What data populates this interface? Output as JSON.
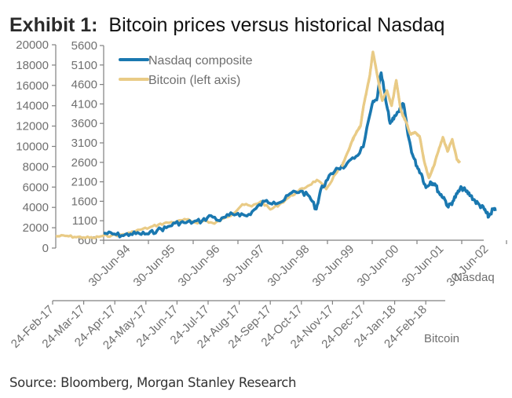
{
  "title": {
    "prefix": "Exhibit 1:",
    "text": "Bitcoin prices versus historical Nasdaq"
  },
  "source": "Source: Bloomberg, Morgan Stanley Research",
  "chart_data": {
    "type": "line",
    "title": "Exhibit 1: Bitcoin prices versus historical Nasdaq",
    "colors": {
      "nasdaq": "#1a78b0",
      "bitcoin": "#e9cb86",
      "axis": "#808080",
      "text": "#6f6f6f"
    },
    "legend": {
      "placement": "top-left",
      "entries": [
        {
          "name": "Nasdaq composite",
          "color": "#1a78b0"
        },
        {
          "name": "Bitcoin (left axis)",
          "color": "#e9cb86"
        }
      ]
    },
    "y_left": {
      "label": "Bitcoin",
      "range": [
        0,
        20000
      ],
      "ticks": [
        "0",
        "2000",
        "4000",
        "6000",
        "8000",
        "10000",
        "12000",
        "14000",
        "16000",
        "18000",
        "20000"
      ]
    },
    "y_inner": {
      "label": "Nasdaq",
      "range": [
        600,
        5600
      ],
      "ticks": [
        "600",
        "1100",
        "1600",
        "2100",
        "2600",
        "3100",
        "3600",
        "4100",
        "4600",
        "5100",
        "5600"
      ]
    },
    "x_nasdaq": {
      "label": "Nasdaq",
      "range_years": [
        1994.0,
        2002.5
      ],
      "tick_labels": [
        "30-Jun-94",
        "30-Jun-95",
        "30-Jun-96",
        "30-Jun-97",
        "30-Jun-98",
        "30-Jun-99",
        "30-Jun-00",
        "30-Jun-01",
        "30-Jun-02"
      ]
    },
    "x_bitcoin": {
      "label": "Bitcoin",
      "range_months_from_24_Feb_17": [
        0,
        13.2
      ],
      "tick_labels": [
        "24-Feb-17",
        "24-Mar-17",
        "24-Apr-17",
        "24-May-17",
        "24-Jun-17",
        "24-Jul-17",
        "24-Aug-17",
        "24-Sep-17",
        "24-Oct-17",
        "24-Nov-17",
        "24-Dec-17",
        "24-Jan-18",
        "24-Feb-18"
      ]
    },
    "series": [
      {
        "name": "Nasdaq composite",
        "axis": "y_inner / x_nasdaq",
        "x_years": [
          1994.0,
          1994.2,
          1994.4,
          1994.6,
          1994.8,
          1995.0,
          1995.2,
          1995.4,
          1995.6,
          1995.8,
          1996.0,
          1996.2,
          1996.4,
          1996.6,
          1996.8,
          1997.0,
          1997.2,
          1997.4,
          1997.6,
          1997.8,
          1998.0,
          1998.2,
          1998.4,
          1998.6,
          1998.75,
          1998.85,
          1999.0,
          1999.2,
          1999.4,
          1999.6,
          1999.8,
          2000.0,
          2000.1,
          2000.2,
          2000.3,
          2000.4,
          2000.5,
          2000.6,
          2000.7,
          2000.8,
          2000.9,
          2001.0,
          2001.1,
          2001.2,
          2001.3,
          2001.4,
          2001.5,
          2001.6,
          2001.7,
          2001.8,
          2001.9,
          2002.0,
          2002.1,
          2002.2,
          2002.3,
          2002.4,
          2002.5,
          2002.55,
          2002.6,
          2002.7,
          2002.75
        ],
        "values": [
          780,
          760,
          720,
          760,
          770,
          760,
          860,
          920,
          1040,
          1050,
          1070,
          1100,
          1230,
          1100,
          1240,
          1290,
          1220,
          1410,
          1600,
          1580,
          1600,
          1820,
          1860,
          1720,
          1400,
          1900,
          2150,
          2450,
          2500,
          2700,
          3000,
          4100,
          4200,
          4900,
          4200,
          3600,
          3800,
          3900,
          4100,
          3300,
          2800,
          2500,
          2300,
          1950,
          2100,
          2050,
          1800,
          1700,
          1450,
          1600,
          1800,
          1950,
          1850,
          1750,
          1600,
          1500,
          1400,
          1300,
          1200,
          1400,
          1350
        ]
      },
      {
        "name": "Bitcoin (left axis)",
        "axis": "y_left / x_bitcoin",
        "x_months": [
          0,
          0.3,
          0.6,
          0.9,
          1.2,
          1.5,
          1.8,
          2.1,
          2.4,
          2.7,
          3.0,
          3.3,
          3.6,
          3.9,
          4.2,
          4.5,
          4.8,
          5.1,
          5.4,
          5.7,
          6.0,
          6.3,
          6.6,
          6.9,
          7.2,
          7.5,
          7.8,
          8.1,
          8.4,
          8.7,
          9.0,
          9.2,
          9.4,
          9.6,
          9.8,
          9.9,
          10.0,
          10.1,
          10.2,
          10.35,
          10.5,
          10.65,
          10.8,
          10.95,
          11.1,
          11.25,
          11.4,
          11.55,
          11.7,
          11.85,
          12.0,
          12.15,
          12.3,
          12.45,
          12.6,
          12.75,
          12.9,
          13.0
        ],
        "values": [
          1150,
          1200,
          1100,
          1050,
          1000,
          1180,
          1250,
          1300,
          1500,
          1800,
          2000,
          2300,
          2500,
          2600,
          2800,
          2500,
          2700,
          2400,
          2900,
          3400,
          4300,
          4100,
          4600,
          3800,
          4300,
          5000,
          5600,
          6100,
          6700,
          5800,
          7300,
          8000,
          9500,
          11000,
          12000,
          14000,
          15500,
          17000,
          19300,
          16800,
          14500,
          15500,
          14000,
          16500,
          13500,
          12500,
          11200,
          11400,
          11000,
          8500,
          6900,
          8000,
          9500,
          10900,
          9500,
          10700,
          8700,
          8400
        ]
      }
    ]
  }
}
